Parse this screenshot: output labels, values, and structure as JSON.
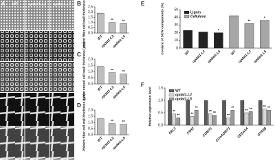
{
  "micrographs": {
    "panel": "A",
    "columns": [
      "WT",
      "opdat1-L2",
      "opdat1-L5"
    ]
  },
  "chart_data": [
    {
      "type": "bar",
      "panel": "B",
      "y_label": "Xylem fiber cell wall thickness (μm)",
      "categories": [
        "WT",
        "opdat1-L2",
        "opdat1-L5"
      ],
      "values": [
        1.9,
        1.0,
        0.9
      ],
      "color": "#bdbdbd",
      "significance": [
        null,
        "**",
        "**"
      ],
      "ylim": [
        0,
        2.5
      ],
      "yticks": [
        {
          "value": 0,
          "label": "0.0"
        },
        0.5,
        {
          "value": 1,
          "label": "1.0"
        },
        1.5,
        {
          "value": 2,
          "label": "2.0"
        },
        2.5
      ]
    },
    {
      "type": "bar",
      "panel": "C",
      "y_label": "Xylem vessel cell wall thickness (μm)",
      "categories": [
        "WT",
        "opdat1-L2",
        "opdat1-L5"
      ],
      "values": [
        1.4,
        0.9,
        0.8
      ],
      "color": "#bdbdbd",
      "significance": [
        null,
        "**",
        "**"
      ],
      "ylim": [
        0,
        2
      ],
      "yticks": [
        {
          "value": 0,
          "label": "0.0"
        },
        0.5,
        {
          "value": 1,
          "label": "1.0"
        },
        1.5,
        {
          "value": 2,
          "label": "2.0"
        }
      ]
    },
    {
      "type": "bar",
      "panel": "D",
      "y_label": "Phloem fiber cell wall thickness (μm)",
      "categories": [
        "WT",
        "opdat1-L2",
        "opdat1-L5"
      ],
      "values": [
        1.3,
        0.9,
        0.85
      ],
      "color": "#bdbdbd",
      "significance": [
        null,
        "**",
        "**"
      ],
      "ylim": [
        0,
        2
      ],
      "yticks": [
        {
          "value": 0,
          "label": "0.0"
        },
        0.5,
        {
          "value": 1,
          "label": "1.0"
        },
        1.5,
        {
          "value": 2,
          "label": "2.0"
        }
      ]
    },
    {
      "type": "bar",
      "panel": "E",
      "y_label": "Content of SCW components (%)",
      "categories": [
        "WT",
        "opdat1-L2",
        "opdat1-L5",
        "WT",
        "opdat1-L2",
        "opdat1-L5"
      ],
      "series": [
        {
          "name": "Lignin",
          "color": "#222222",
          "values": [
            23,
            21,
            20,
            null,
            null,
            null
          ],
          "significance": [
            null,
            null,
            "*",
            null,
            null,
            null
          ]
        },
        {
          "name": "Cellulose",
          "color": "#a6a6a6",
          "values": [
            null,
            null,
            null,
            42,
            32,
            36
          ],
          "significance": [
            null,
            null,
            null,
            null,
            "**",
            "*"
          ]
        }
      ],
      "legend": "top-left",
      "ylim": [
        0,
        50
      ],
      "yticks": [
        0,
        10,
        20,
        30,
        40,
        50
      ]
    },
    {
      "type": "bar",
      "panel": "F",
      "y_label": "Relative expression level",
      "categories": [
        "PAL1",
        "F5H2",
        "COMT1",
        "CCoAOMT1",
        "CESA3A",
        "GT43B"
      ],
      "series": [
        {
          "name": "WT",
          "color": "#5a5a5a",
          "values": [
            1,
            1,
            1,
            1,
            1,
            1
          ]
        },
        {
          "name": "opdat1-L2",
          "color": "#d9d9d9",
          "values": [
            0.45,
            0.35,
            0.45,
            0.3,
            0.5,
            0.65
          ],
          "significance": [
            "**",
            "**",
            "**",
            "**",
            "**",
            "**"
          ]
        },
        {
          "name": "opdat1-L5",
          "color": "#9a9a9a",
          "values": [
            0.3,
            0.6,
            0.4,
            0.6,
            0.55,
            0.6
          ],
          "significance": [
            "**",
            "**",
            "**",
            "**",
            "**",
            "**"
          ]
        }
      ],
      "legend": "top-left",
      "ylim": [
        0,
        1.5
      ],
      "yticks": [
        {
          "value": 0,
          "label": "0.0"
        },
        0.5,
        {
          "value": 1,
          "label": "1.0"
        },
        1.5
      ]
    }
  ]
}
